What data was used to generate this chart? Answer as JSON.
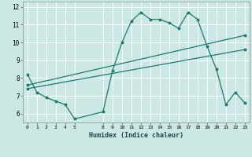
{
  "bg_color": "#cce8e5",
  "grid_color": "#ffffff",
  "line_color": "#1a7a6e",
  "xlabel": "Humidex (Indice chaleur)",
  "xlim": [
    -0.5,
    23.5
  ],
  "ylim": [
    5.5,
    12.3
  ],
  "yticks": [
    6,
    7,
    8,
    9,
    10,
    11,
    12
  ],
  "xticks": [
    0,
    1,
    2,
    3,
    4,
    5,
    8,
    9,
    10,
    11,
    12,
    13,
    14,
    15,
    16,
    17,
    18,
    19,
    20,
    21,
    22,
    23
  ],
  "line1_x": [
    0,
    1,
    2,
    3,
    4,
    5,
    8,
    9,
    10,
    11,
    12,
    13,
    14,
    15,
    16,
    17,
    18,
    19,
    20,
    21,
    22,
    23
  ],
  "line1_y": [
    8.2,
    7.2,
    6.9,
    6.7,
    6.5,
    5.7,
    6.1,
    8.4,
    10.0,
    11.2,
    11.7,
    11.3,
    11.3,
    11.1,
    10.8,
    11.7,
    11.3,
    9.8,
    8.5,
    6.5,
    7.2,
    6.6
  ],
  "line2_x": [
    0,
    23
  ],
  "line2_y": [
    7.6,
    10.4
  ],
  "line3_x": [
    0,
    23
  ],
  "line3_y": [
    7.4,
    9.6
  ],
  "figsize": [
    3.2,
    2.0
  ],
  "dpi": 100
}
